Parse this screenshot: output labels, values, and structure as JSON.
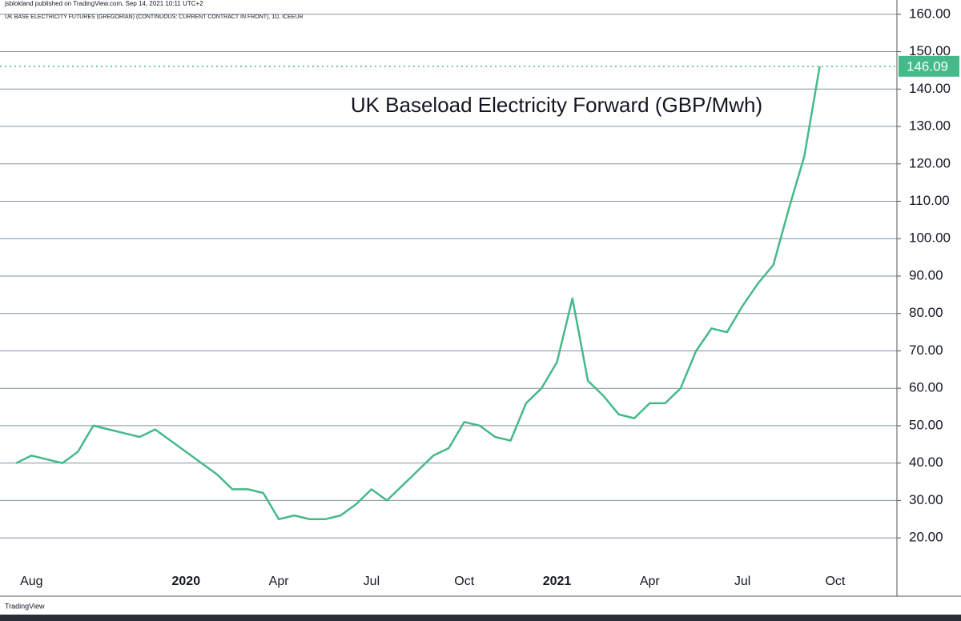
{
  "chart_data": {
    "type": "line",
    "header": "jsblokland published on TradingView.com, Sep 14, 2021 10:11 UTC+2",
    "subtitle": "UK BASE ELECTRICITY FUTURES (GREGORIAN) (CONTINUOUS: CURRENT CONTRACT IN FRONT), 1D, ICEEUR",
    "title": "UK Baseload Electricity Forward (GBP/Mwh)",
    "footer": "TradingView",
    "color": "#45b98a",
    "grid": true,
    "categories": [
      null,
      "Aug",
      null,
      null,
      null,
      null,
      null,
      null,
      null,
      null,
      null,
      "2020",
      null,
      null,
      null,
      null,
      null,
      "Apr",
      null,
      null,
      null,
      null,
      null,
      "Jul",
      null,
      null,
      null,
      null,
      null,
      "Oct",
      null,
      null,
      null,
      null,
      null,
      "2021",
      null,
      null,
      null,
      null,
      null,
      "Apr",
      null,
      null,
      null,
      null,
      null,
      "Jul",
      null,
      null,
      null,
      null,
      null,
      "Oct",
      null,
      null,
      null
    ],
    "values": [
      40,
      42,
      41,
      40,
      43,
      50,
      49,
      48,
      47,
      49,
      46,
      43,
      40,
      37,
      33,
      33,
      32,
      25,
      26,
      25,
      25,
      26,
      29,
      33,
      30,
      34,
      38,
      42,
      44,
      51,
      50,
      47,
      46,
      56,
      60,
      67,
      84,
      62,
      58,
      53,
      52,
      56,
      56,
      60,
      70,
      76,
      75,
      82,
      88,
      93,
      108,
      122,
      146.09,
      null,
      null,
      null,
      null
    ],
    "ylim": [
      11.9,
      162.1
    ],
    "yticks": [
      {
        "value": 20,
        "label": "20.00"
      },
      {
        "value": 30,
        "label": "30.00"
      },
      {
        "value": 40,
        "label": "40.00"
      },
      {
        "value": 50,
        "label": "50.00"
      },
      {
        "value": 60,
        "label": "60.00"
      },
      {
        "value": 70,
        "label": "70.00"
      },
      {
        "value": 80,
        "label": "80.00"
      },
      {
        "value": 90,
        "label": "90.00"
      },
      {
        "value": 100,
        "label": "100.00"
      },
      {
        "value": 110,
        "label": "110.00"
      },
      {
        "value": 120,
        "label": "120.00"
      },
      {
        "value": 130,
        "label": "130.00"
      },
      {
        "value": 140,
        "label": "140.00"
      },
      {
        "value": 150,
        "label": "150.00"
      },
      {
        "value": 160,
        "label": "160.00"
      }
    ]
  }
}
